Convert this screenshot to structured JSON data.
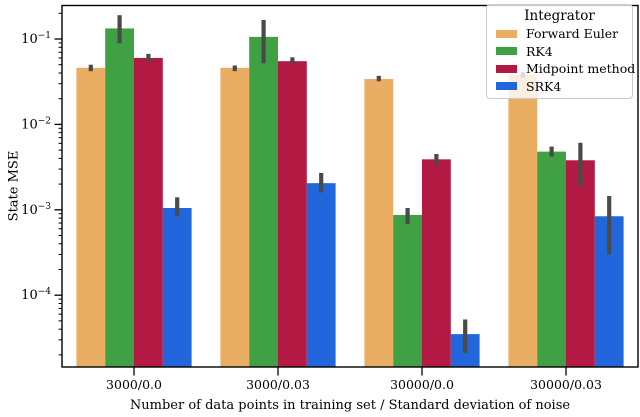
{
  "figure": {
    "xlabel": "Number of data points in training set / Standard deviation of noise",
    "ylabel": "State MSE",
    "background_color": "#ffffff",
    "axis_color": "#000000",
    "errorbar_color": "#4a4a4a"
  },
  "legend": {
    "title": "Integrator",
    "position": "upper right"
  },
  "chart_data": {
    "type": "bar",
    "orientation": "vertical",
    "yscale": "log",
    "grid": false,
    "title": "",
    "xlabel": "Number of data points in training set / Standard deviation of noise",
    "ylabel": "State MSE",
    "categories": [
      "3000/0.0",
      "3000/0.03",
      "30000/0.0",
      "30000/0.03"
    ],
    "ylim": [
      1.45e-05,
      0.246
    ],
    "ytick_exponents": [
      -1,
      -2,
      -3,
      -4
    ],
    "series": [
      {
        "name": "Forward Euler",
        "color": "#E9AE61",
        "values": [
          0.046,
          0.046,
          0.034,
          0.038
        ],
        "err_lo": [
          0.042,
          0.042,
          0.032,
          0.035
        ],
        "err_hi": [
          0.05,
          0.049,
          0.037,
          0.041
        ]
      },
      {
        "name": "RK4",
        "color": "#40A044",
        "values": [
          0.133,
          0.106,
          0.00087,
          0.0048
        ],
        "err_lo": [
          0.089,
          0.052,
          0.00068,
          0.0042
        ],
        "err_hi": [
          0.19,
          0.167,
          0.00105,
          0.0055
        ]
      },
      {
        "name": "Midpoint method",
        "color": "#B21943",
        "values": [
          0.06,
          0.055,
          0.0039,
          0.0038
        ],
        "err_lo": [
          0.054,
          0.051,
          0.0034,
          0.0019
        ],
        "err_hi": [
          0.067,
          0.061,
          0.0045,
          0.0061
        ]
      },
      {
        "name": "SRK4",
        "color": "#2166DB",
        "values": [
          0.00105,
          0.00205,
          3.5e-05,
          0.00084
        ],
        "err_lo": [
          0.00084,
          0.0016,
          2.1e-05,
          0.0003
        ],
        "err_hi": [
          0.0014,
          0.0027,
          5.2e-05,
          0.00145
        ]
      }
    ]
  }
}
